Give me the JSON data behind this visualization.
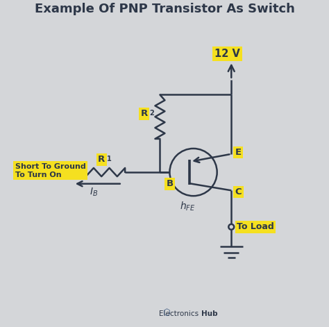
{
  "title": "Example Of PNP Transistor As Switch",
  "bg_color": "#d4d6d9",
  "line_color": "#2d3748",
  "yellow_color": "#f5e020",
  "title_fontsize": 13,
  "voltage_label": "12 V",
  "short_label": "Short To Ground\nTo Turn On",
  "toload_label": "To Load",
  "watermark_bold": "Hub",
  "watermark_normal": "Electronics ",
  "e_label": "E",
  "b_label": "B",
  "c_label": "C",
  "r1_label": "R",
  "r2_label": "R",
  "r1_sub": "1",
  "r2_sub": "2",
  "ib_sub": "B",
  "hfe_label": "h",
  "hfe_sub": "FE"
}
